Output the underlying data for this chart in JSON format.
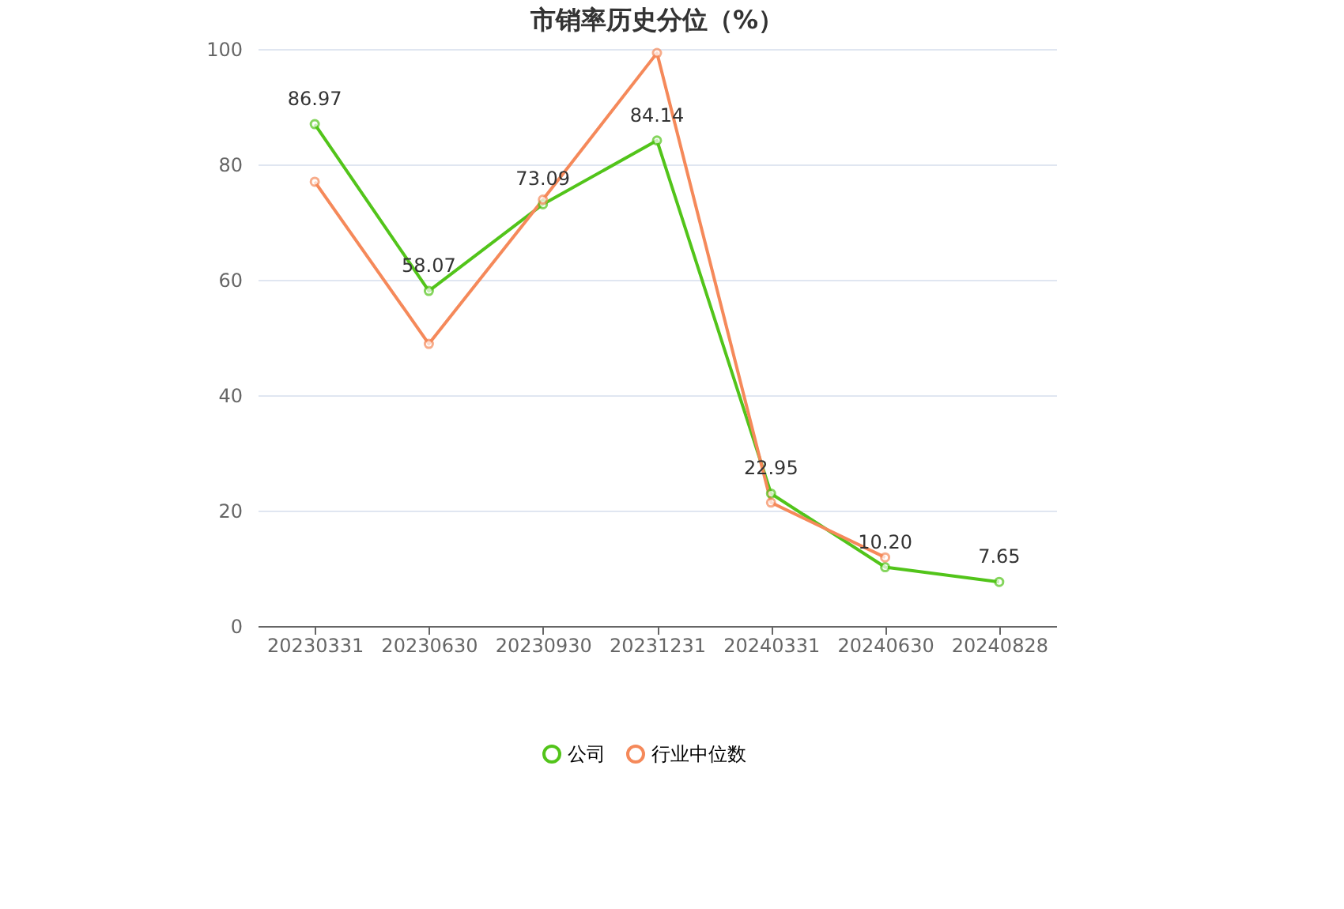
{
  "chart_data": {
    "type": "line",
    "title": "市销率历史分位（%）",
    "categories": [
      "20230331",
      "20230630",
      "20230930",
      "20231231",
      "20240331",
      "20240630",
      "20240828"
    ],
    "series": [
      {
        "name": "公司",
        "color": "#52c41a",
        "values": [
          86.97,
          58.07,
          73.09,
          84.14,
          22.95,
          10.2,
          7.65
        ],
        "value_labels": [
          "86.97",
          "58.07",
          "73.09",
          "84.14",
          "22.95",
          "10.20",
          "7.65"
        ]
      },
      {
        "name": "行业中位数",
        "color": "#f5895a",
        "values": [
          77.0,
          48.9,
          73.9,
          99.3,
          21.4,
          11.9,
          null
        ]
      }
    ],
    "ylim": [
      0,
      100
    ],
    "yticks": [
      0,
      20,
      40,
      60,
      80,
      100
    ],
    "grid": "y",
    "legend": "bottom",
    "marker": "circle",
    "line_style": "solid"
  }
}
